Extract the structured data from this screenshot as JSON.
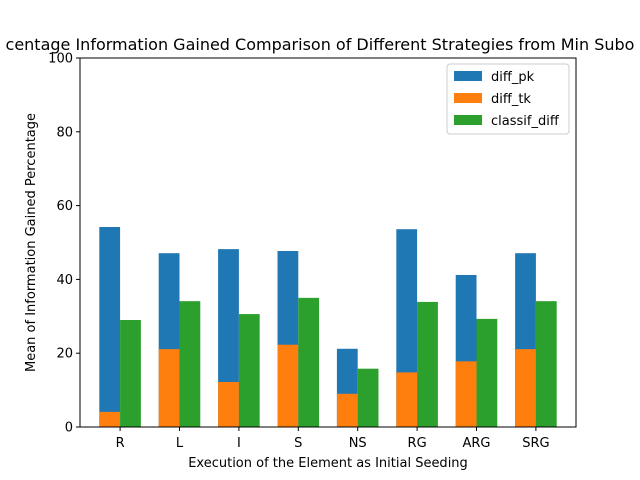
{
  "chart_data": {
    "type": "bar",
    "title": "centage Information Gained Comparison of Different Strategies from Min Subo",
    "xlabel": "Execution of the Element as Initial Seeding",
    "ylabel": "Mean of Information Gained Percentage",
    "categories": [
      "R",
      "L",
      "I",
      "S",
      "NS",
      "RG",
      "ARG",
      "SRG"
    ],
    "ylim": [
      0,
      100
    ],
    "yticks": [
      0,
      20,
      40,
      60,
      80,
      100
    ],
    "legend_position": "top-right",
    "series": [
      {
        "name": "diff_pk",
        "color": "#1f77b4",
        "values": [
          54.2,
          47.1,
          48.2,
          47.7,
          21.2,
          53.6,
          41.2,
          47.1
        ]
      },
      {
        "name": "diff_tk",
        "color": "#ff7f0e",
        "values": [
          4.1,
          21.1,
          12.2,
          22.3,
          9.0,
          14.8,
          17.8,
          21.1
        ]
      },
      {
        "name": "classif_diff",
        "color": "#2ca02c",
        "values": [
          29.0,
          34.1,
          30.6,
          35.0,
          15.8,
          33.9,
          29.3,
          34.1
        ]
      }
    ]
  }
}
